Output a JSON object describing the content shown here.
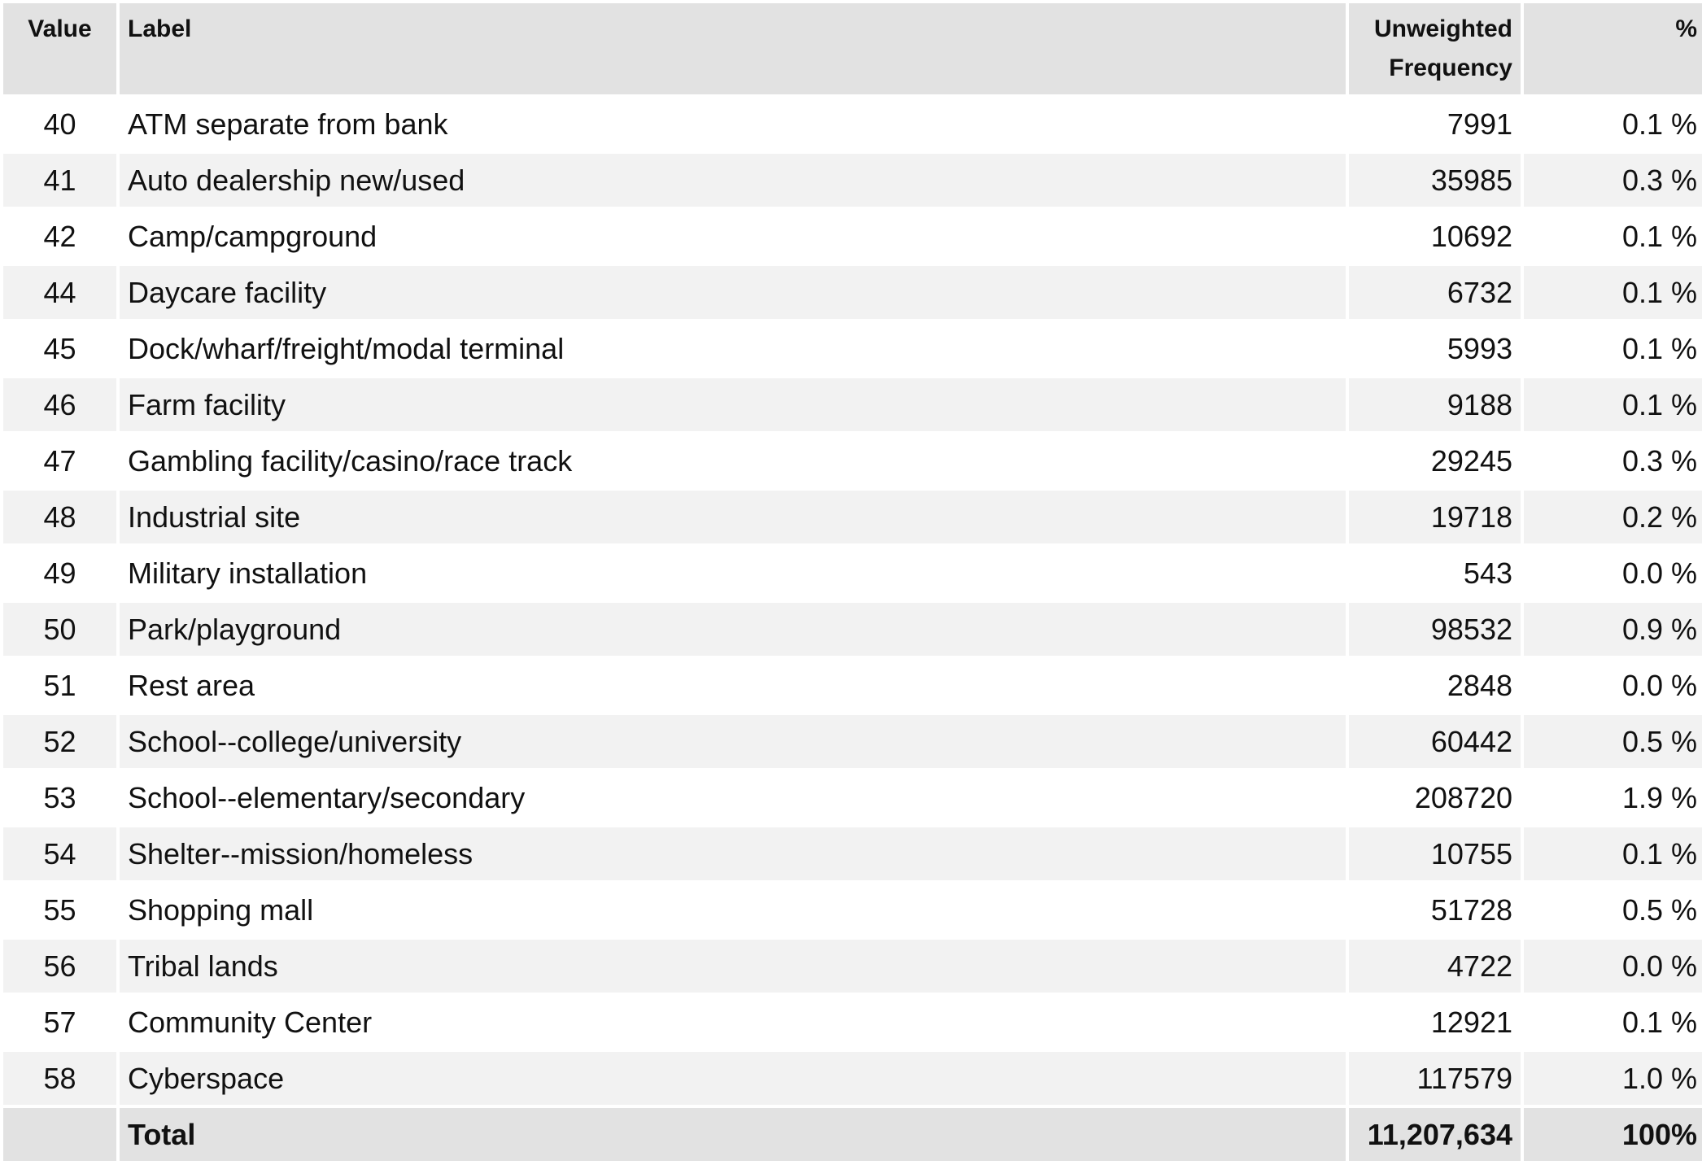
{
  "table": {
    "headers": {
      "value": "Value",
      "label": "Label",
      "freq_line1": "Unweighted",
      "freq_line2": "Frequency",
      "pct": "%"
    },
    "rows": [
      {
        "value": "40",
        "label": "ATM separate from bank",
        "frequency": "7991",
        "percent": "0.1 %"
      },
      {
        "value": "41",
        "label": "Auto dealership new/used",
        "frequency": "35985",
        "percent": "0.3 %"
      },
      {
        "value": "42",
        "label": "Camp/campground",
        "frequency": "10692",
        "percent": "0.1 %"
      },
      {
        "value": "44",
        "label": "Daycare facility",
        "frequency": "6732",
        "percent": "0.1 %"
      },
      {
        "value": "45",
        "label": "Dock/wharf/freight/modal terminal",
        "frequency": "5993",
        "percent": "0.1 %"
      },
      {
        "value": "46",
        "label": "Farm facility",
        "frequency": "9188",
        "percent": "0.1 %"
      },
      {
        "value": "47",
        "label": "Gambling facility/casino/race track",
        "frequency": "29245",
        "percent": "0.3 %"
      },
      {
        "value": "48",
        "label": "Industrial site",
        "frequency": "19718",
        "percent": "0.2 %"
      },
      {
        "value": "49",
        "label": "Military installation",
        "frequency": "543",
        "percent": "0.0 %"
      },
      {
        "value": "50",
        "label": "Park/playground",
        "frequency": "98532",
        "percent": "0.9 %"
      },
      {
        "value": "51",
        "label": "Rest area",
        "frequency": "2848",
        "percent": "0.0 %"
      },
      {
        "value": "52",
        "label": "School--college/university",
        "frequency": "60442",
        "percent": "0.5 %"
      },
      {
        "value": "53",
        "label": "School--elementary/secondary",
        "frequency": "208720",
        "percent": "1.9 %"
      },
      {
        "value": "54",
        "label": "Shelter--mission/homeless",
        "frequency": "10755",
        "percent": "0.1 %"
      },
      {
        "value": "55",
        "label": "Shopping mall",
        "frequency": "51728",
        "percent": "0.5 %"
      },
      {
        "value": "56",
        "label": "Tribal lands",
        "frequency": "4722",
        "percent": "0.0 %"
      },
      {
        "value": "57",
        "label": "Community Center",
        "frequency": "12921",
        "percent": "0.1 %"
      },
      {
        "value": "58",
        "label": "Cyberspace",
        "frequency": "117579",
        "percent": "1.0 %"
      }
    ],
    "total": {
      "value": "",
      "label": "Total",
      "frequency": "11,207,634",
      "percent": "100%"
    }
  }
}
